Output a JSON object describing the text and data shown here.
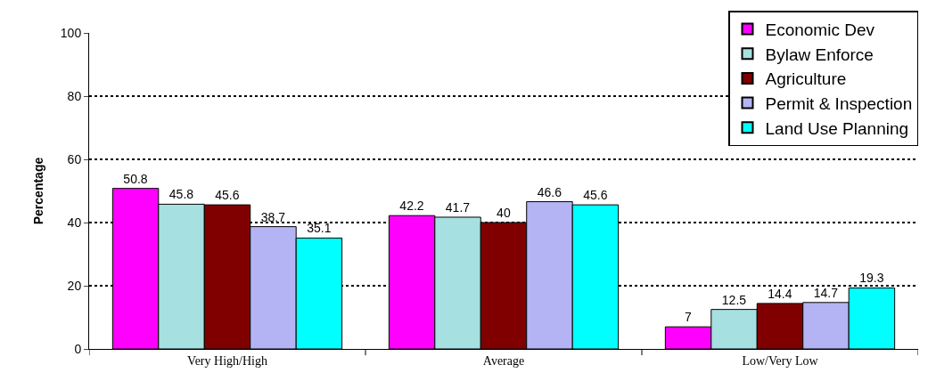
{
  "chart_data": {
    "type": "bar",
    "ylabel": "Percentage",
    "categories": [
      "Very High/High",
      "Average",
      "Low/Very Low"
    ],
    "series": [
      {
        "name": "Economic Dev",
        "color": "#ff00ff",
        "values": [
          50.8,
          42.2,
          7
        ]
      },
      {
        "name": "Bylaw Enforce",
        "color": "#a6e0e0",
        "values": [
          45.8,
          41.7,
          12.5
        ]
      },
      {
        "name": "Agriculture",
        "color": "#800000",
        "values": [
          45.6,
          40,
          14.4
        ]
      },
      {
        "name": "Permit & Inspection",
        "color": "#b4b4f4",
        "values": [
          38.7,
          46.6,
          14.7
        ]
      },
      {
        "name": "Land Use Planning",
        "color": "#00ffff",
        "values": [
          35.1,
          45.6,
          19.3
        ]
      }
    ],
    "ylim": [
      0,
      100
    ],
    "yticks": [
      0,
      20,
      40,
      60,
      80,
      100
    ],
    "grid": "y",
    "legend": "top right",
    "data_labels": true
  }
}
